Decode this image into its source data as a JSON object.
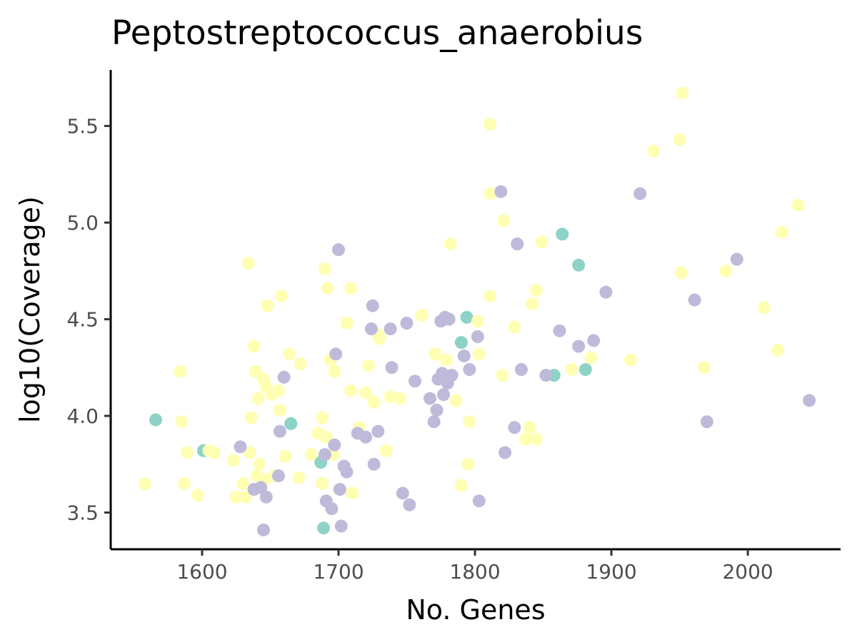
{
  "chart_data": {
    "type": "scatter",
    "title": "Peptostreptococcus_anaerobius",
    "xlabel": "No. Genes",
    "ylabel": "log10(Coverage)",
    "xlim": [
      1533,
      2068
    ],
    "ylim": [
      3.31,
      5.79
    ],
    "xticks": [
      1600,
      1700,
      1800,
      1900,
      2000
    ],
    "yticks": [
      3.5,
      4.0,
      4.5,
      5.0,
      5.5
    ],
    "xtick_labels": [
      "1600",
      "1700",
      "1800",
      "1900",
      "2000"
    ],
    "ytick_labels": [
      "3.5",
      "4.0",
      "4.5",
      "5.0",
      "5.5"
    ],
    "grid": false,
    "legend": "none",
    "series": [
      {
        "color": "#8dd3c7",
        "points": [
          [
            1566,
            3.98
          ],
          [
            1601,
            3.82
          ],
          [
            1665,
            3.96
          ],
          [
            1687,
            3.76
          ],
          [
            1689,
            3.42
          ],
          [
            1790,
            4.38
          ],
          [
            1794,
            4.51
          ],
          [
            1858,
            4.21
          ],
          [
            1864,
            4.94
          ],
          [
            1876,
            4.78
          ],
          [
            1881,
            4.24
          ]
        ]
      },
      {
        "color": "#ffffb3",
        "points": [
          [
            1558,
            3.65
          ],
          [
            1584,
            4.23
          ],
          [
            1585,
            3.97
          ],
          [
            1587,
            3.65
          ],
          [
            1589,
            3.81
          ],
          [
            1597,
            3.59
          ],
          [
            1605,
            3.82
          ],
          [
            1609,
            3.81
          ],
          [
            1623,
            3.77
          ],
          [
            1625,
            3.58
          ],
          [
            1630,
            3.65
          ],
          [
            1632,
            3.58
          ],
          [
            1634,
            4.79
          ],
          [
            1635,
            3.81
          ],
          [
            1636,
            3.99
          ],
          [
            1638,
            4.36
          ],
          [
            1639,
            4.23
          ],
          [
            1640,
            3.69
          ],
          [
            1641,
            4.09
          ],
          [
            1642,
            3.75
          ],
          [
            1645,
            4.19
          ],
          [
            1646,
            3.67
          ],
          [
            1647,
            4.15
          ],
          [
            1648,
            4.57
          ],
          [
            1651,
            4.11
          ],
          [
            1653,
            3.69
          ],
          [
            1656,
            4.13
          ],
          [
            1657,
            4.03
          ],
          [
            1658,
            4.62
          ],
          [
            1661,
            3.79
          ],
          [
            1664,
            4.32
          ],
          [
            1671,
            3.68
          ],
          [
            1672,
            4.27
          ],
          [
            1680,
            3.8
          ],
          [
            1685,
            3.91
          ],
          [
            1688,
            3.99
          ],
          [
            1688,
            3.65
          ],
          [
            1690,
            4.76
          ],
          [
            1691,
            3.89
          ],
          [
            1692,
            4.66
          ],
          [
            1694,
            4.29
          ],
          [
            1696,
            3.8
          ],
          [
            1697,
            4.23
          ],
          [
            1706,
            4.48
          ],
          [
            1709,
            4.66
          ],
          [
            1709,
            4.13
          ],
          [
            1710,
            3.6
          ],
          [
            1715,
            3.94
          ],
          [
            1720,
            4.12
          ],
          [
            1722,
            4.26
          ],
          [
            1726,
            4.07
          ],
          [
            1729,
            4.42
          ],
          [
            1730,
            4.4
          ],
          [
            1735,
            3.82
          ],
          [
            1738,
            4.1
          ],
          [
            1745,
            4.09
          ],
          [
            1761,
            4.52
          ],
          [
            1771,
            4.32
          ],
          [
            1779,
            4.29
          ],
          [
            1780,
            4.21
          ],
          [
            1782,
            4.89
          ],
          [
            1786,
            4.08
          ],
          [
            1790,
            3.64
          ],
          [
            1795,
            3.75
          ],
          [
            1796,
            3.97
          ],
          [
            1802,
            4.49
          ],
          [
            1803,
            4.32
          ],
          [
            1811,
            5.51
          ],
          [
            1811,
            5.15
          ],
          [
            1811,
            4.62
          ],
          [
            1820,
            4.21
          ],
          [
            1821,
            5.01
          ],
          [
            1829,
            4.46
          ],
          [
            1837,
            3.88
          ],
          [
            1840,
            3.94
          ],
          [
            1842,
            4.58
          ],
          [
            1845,
            3.88
          ],
          [
            1845,
            4.65
          ],
          [
            1849,
            4.9
          ],
          [
            1871,
            4.24
          ],
          [
            1885,
            4.3
          ],
          [
            1914,
            4.29
          ],
          [
            1931,
            5.37
          ],
          [
            1950,
            5.43
          ],
          [
            1951,
            4.74
          ],
          [
            1952,
            5.67
          ],
          [
            1968,
            4.25
          ],
          [
            1984,
            4.75
          ],
          [
            2012,
            4.56
          ],
          [
            2022,
            4.34
          ],
          [
            2025,
            4.95
          ],
          [
            2037,
            5.09
          ]
        ]
      },
      {
        "color": "#bebada",
        "points": [
          [
            1628,
            3.84
          ],
          [
            1638,
            3.62
          ],
          [
            1643,
            3.63
          ],
          [
            1645,
            3.41
          ],
          [
            1647,
            3.58
          ],
          [
            1656,
            3.69
          ],
          [
            1657,
            3.92
          ],
          [
            1660,
            4.2
          ],
          [
            1690,
            3.8
          ],
          [
            1691,
            3.56
          ],
          [
            1695,
            3.52
          ],
          [
            1697,
            3.85
          ],
          [
            1698,
            4.32
          ],
          [
            1700,
            4.86
          ],
          [
            1701,
            3.62
          ],
          [
            1702,
            3.43
          ],
          [
            1704,
            3.74
          ],
          [
            1706,
            3.71
          ],
          [
            1714,
            3.91
          ],
          [
            1720,
            3.89
          ],
          [
            1724,
            4.45
          ],
          [
            1725,
            4.57
          ],
          [
            1726,
            3.75
          ],
          [
            1729,
            3.92
          ],
          [
            1738,
            4.45
          ],
          [
            1739,
            4.25
          ],
          [
            1747,
            3.6
          ],
          [
            1750,
            4.48
          ],
          [
            1752,
            3.54
          ],
          [
            1756,
            4.18
          ],
          [
            1767,
            4.09
          ],
          [
            1770,
            3.97
          ],
          [
            1772,
            4.03
          ],
          [
            1773,
            4.19
          ],
          [
            1775,
            4.49
          ],
          [
            1776,
            4.22
          ],
          [
            1777,
            4.11
          ],
          [
            1778,
            4.51
          ],
          [
            1780,
            4.17
          ],
          [
            1781,
            4.5
          ],
          [
            1783,
            4.21
          ],
          [
            1792,
            4.31
          ],
          [
            1796,
            4.24
          ],
          [
            1802,
            4.41
          ],
          [
            1803,
            3.56
          ],
          [
            1819,
            5.16
          ],
          [
            1822,
            3.81
          ],
          [
            1829,
            3.94
          ],
          [
            1831,
            4.89
          ],
          [
            1834,
            4.24
          ],
          [
            1852,
            4.21
          ],
          [
            1862,
            4.44
          ],
          [
            1876,
            4.36
          ],
          [
            1887,
            4.39
          ],
          [
            1896,
            4.64
          ],
          [
            1921,
            5.15
          ],
          [
            1961,
            4.6
          ],
          [
            1970,
            3.97
          ],
          [
            1992,
            4.81
          ],
          [
            2045,
            4.08
          ]
        ]
      }
    ]
  }
}
